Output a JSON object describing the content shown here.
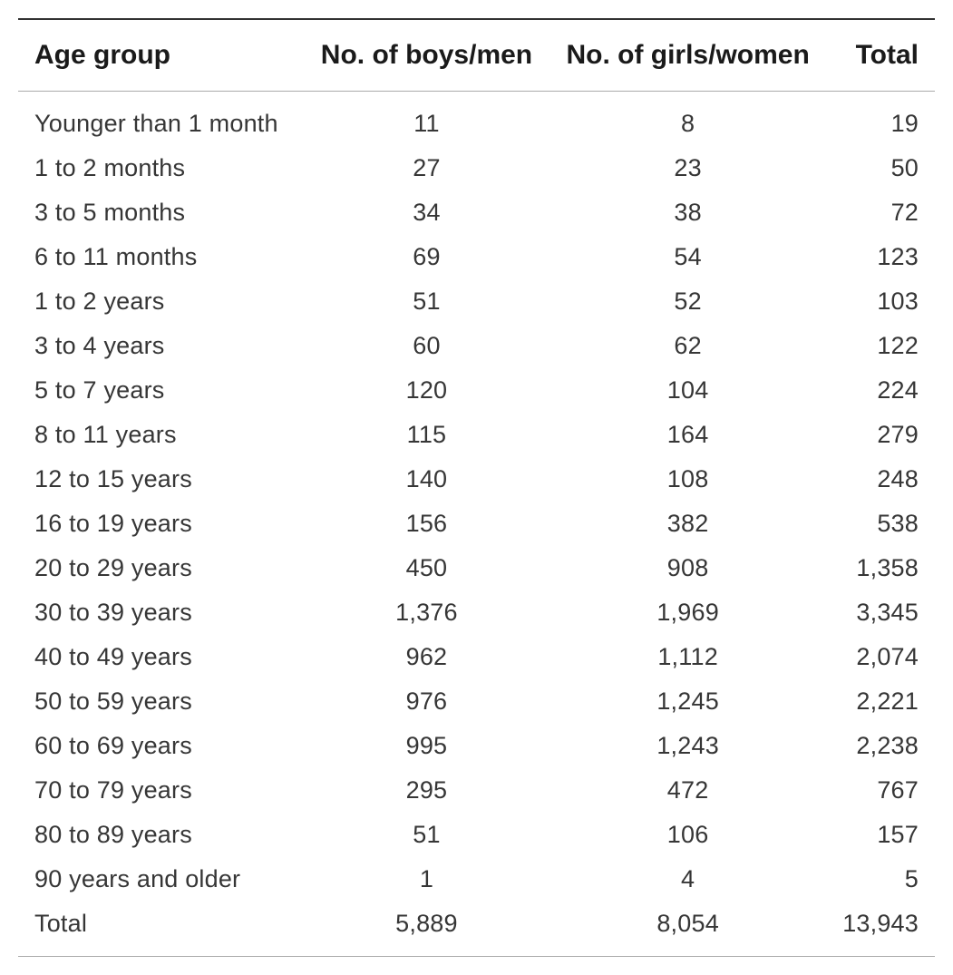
{
  "table": {
    "type": "table",
    "background_color": "#ffffff",
    "header_border_top_color": "#333333",
    "header_border_bottom_color": "#aaaaaa",
    "footer_border_color": "#aaaaaa",
    "header_fontsize": 30,
    "header_fontweight": 700,
    "cell_fontsize": 27,
    "text_color": "#363636",
    "columns": [
      {
        "key": "age_group",
        "label": "Age group",
        "align": "left"
      },
      {
        "key": "boys",
        "label": "No. of boys/men",
        "align": "center"
      },
      {
        "key": "girls",
        "label": "No. of girls/women",
        "align": "center"
      },
      {
        "key": "total",
        "label": "Total",
        "align": "right"
      }
    ],
    "rows": [
      {
        "age_group": "Younger than 1 month",
        "boys": "11",
        "girls": "8",
        "total": "19"
      },
      {
        "age_group": "1 to 2 months",
        "boys": "27",
        "girls": "23",
        "total": "50"
      },
      {
        "age_group": "3 to 5 months",
        "boys": "34",
        "girls": "38",
        "total": "72"
      },
      {
        "age_group": "6 to 11 months",
        "boys": "69",
        "girls": "54",
        "total": "123"
      },
      {
        "age_group": "1 to 2 years",
        "boys": "51",
        "girls": "52",
        "total": "103"
      },
      {
        "age_group": "3 to 4 years",
        "boys": "60",
        "girls": "62",
        "total": "122"
      },
      {
        "age_group": "5 to 7 years",
        "boys": "120",
        "girls": "104",
        "total": "224"
      },
      {
        "age_group": "8 to 11 years",
        "boys": "115",
        "girls": "164",
        "total": "279"
      },
      {
        "age_group": "12 to 15 years",
        "boys": "140",
        "girls": "108",
        "total": "248"
      },
      {
        "age_group": "16 to 19 years",
        "boys": "156",
        "girls": "382",
        "total": "538"
      },
      {
        "age_group": "20 to 29 years",
        "boys": "450",
        "girls": "908",
        "total": "1,358"
      },
      {
        "age_group": "30 to 39 years",
        "boys": "1,376",
        "girls": "1,969",
        "total": "3,345"
      },
      {
        "age_group": "40 to 49 years",
        "boys": "962",
        "girls": "1,112",
        "total": "2,074"
      },
      {
        "age_group": "50 to 59 years",
        "boys": "976",
        "girls": "1,245",
        "total": "2,221"
      },
      {
        "age_group": "60 to 69 years",
        "boys": "995",
        "girls": "1,243",
        "total": "2,238"
      },
      {
        "age_group": "70 to 79 years",
        "boys": "295",
        "girls": "472",
        "total": "767"
      },
      {
        "age_group": "80 to 89 years",
        "boys": "51",
        "girls": "106",
        "total": "157"
      },
      {
        "age_group": "90 years and older",
        "boys": "1",
        "girls": "4",
        "total": "5"
      },
      {
        "age_group": "Total",
        "boys": "5,889",
        "girls": "8,054",
        "total": "13,943"
      }
    ]
  }
}
